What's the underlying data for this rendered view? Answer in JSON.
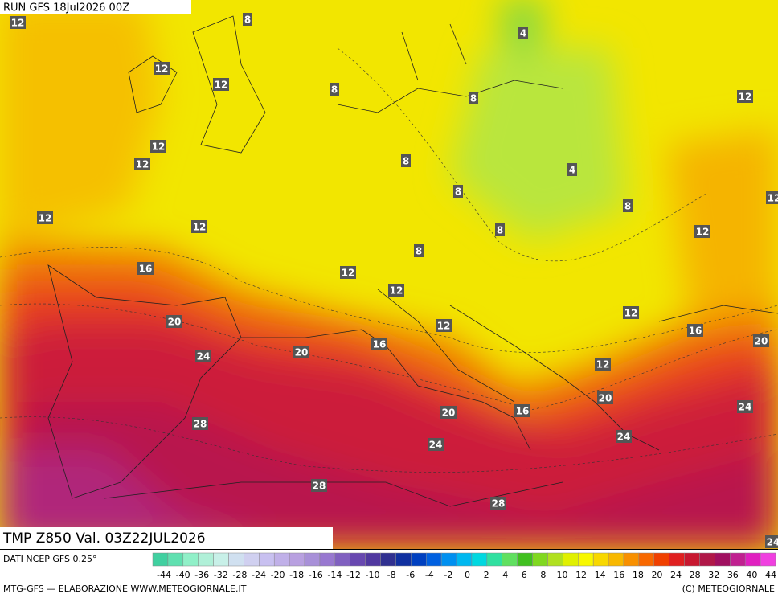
{
  "header": {
    "run": "RUN GFS 18Jul2026 00Z"
  },
  "map": {
    "contour_labels": [
      12,
      8,
      4,
      12,
      12,
      8,
      8,
      12,
      12,
      12,
      8,
      4,
      8,
      12,
      8,
      12,
      8,
      12,
      8,
      16,
      12,
      12,
      12,
      20,
      12,
      16,
      16,
      20,
      24,
      20,
      12,
      20,
      24,
      20,
      16,
      28,
      24,
      24,
      28,
      28,
      12,
      24
    ]
  },
  "footer": {
    "title": "TMP Z850 Val. 03Z22JUL2026",
    "source": "DATI NCEP GFS 0.25°",
    "scale_ticks": [
      -44,
      -40,
      -36,
      -32,
      -28,
      -24,
      -20,
      -18,
      -16,
      -14,
      -12,
      -10,
      -8,
      -6,
      -4,
      -2,
      0,
      2,
      4,
      6,
      8,
      10,
      12,
      14,
      16,
      18,
      20,
      24,
      28,
      32,
      36,
      40,
      44
    ],
    "credit": "MTG-GFS — ELABORAZIONE WWW.METEOGIORNALE.IT",
    "copyright": "(C) METEOGIORNALE"
  }
}
